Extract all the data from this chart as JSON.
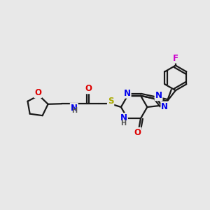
{
  "bg_color": "#e8e8e8",
  "bond_color": "#1a1a1a",
  "bond_width": 1.6,
  "dbo": 0.01,
  "atom_colors": {
    "N": "#0000ee",
    "O": "#dd0000",
    "S": "#aaaa00",
    "F": "#cc00cc",
    "H": "#555555",
    "C": "#1a1a1a"
  },
  "fs": 8.5,
  "fs_s": 7.0,
  "figsize": [
    3.0,
    3.0
  ],
  "dpi": 100
}
